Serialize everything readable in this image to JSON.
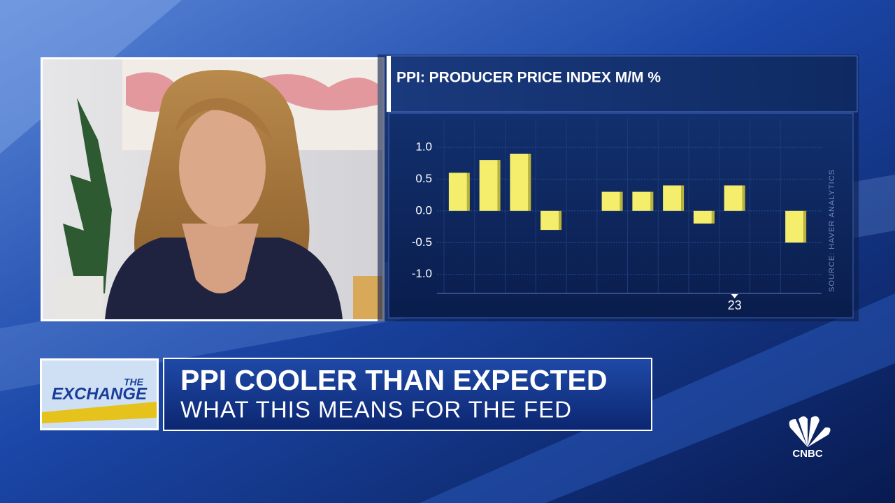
{
  "chart_data": {
    "type": "bar",
    "title": "PPI: PRODUCER PRICE INDEX M/M %",
    "source": "SOURCE: HAVER ANALYTICS",
    "categories": [
      null,
      null,
      null,
      null,
      null,
      null,
      null,
      null,
      null,
      "23",
      null,
      null
    ],
    "values": [
      0.6,
      0.8,
      0.9,
      -0.3,
      0.0,
      0.3,
      0.3,
      0.4,
      -0.2,
      0.4,
      0.0,
      -0.5
    ],
    "color": "#f4ee6c",
    "ylim": [
      -1.3,
      1.45
    ],
    "yticks": [
      {
        "value": 1,
        "label": "1.0"
      },
      {
        "value": 0.5,
        "label": "0.5"
      },
      {
        "value": 0,
        "label": "0.0"
      },
      {
        "value": -0.5,
        "label": "-0.5"
      },
      {
        "value": -1,
        "label": "-1.0"
      }
    ],
    "grid": true
  },
  "logo": {
    "small": "THE",
    "large": "EXCHANGE"
  },
  "lower_third": {
    "headline": "PPI COOLER THAN EXPECTED",
    "subhead": "WHAT THIS MEANS FOR THE FED"
  },
  "network": "CNBC"
}
